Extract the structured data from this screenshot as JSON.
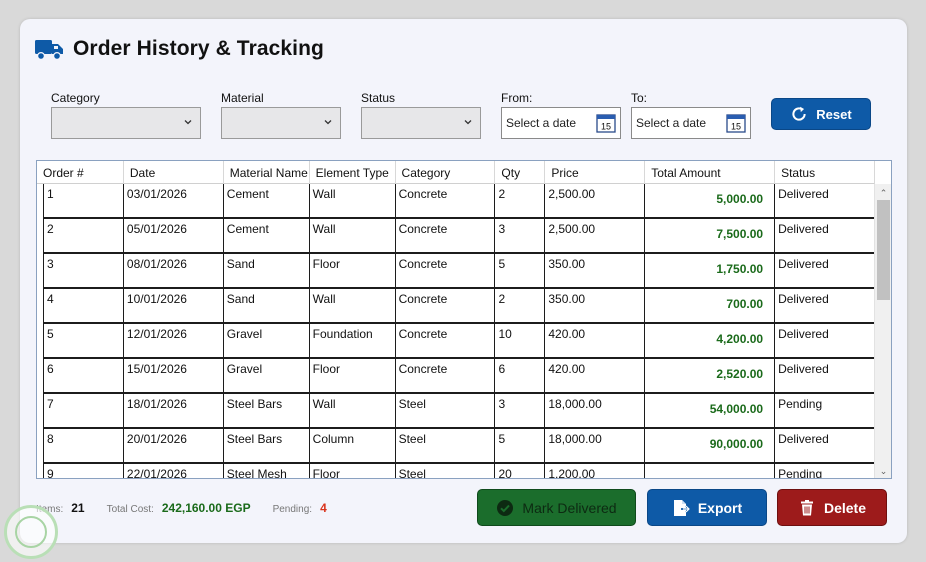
{
  "header": {
    "title": "Order History & Tracking",
    "icon": "truck-icon",
    "accent": "#0e5aa7"
  },
  "filters": {
    "category_label": "Category",
    "material_label": "Material",
    "status_label": "Status",
    "from_label": "From:",
    "to_label": "To:",
    "from_placeholder": "Select a date",
    "to_placeholder": "Select a date",
    "calendar_day": "15",
    "reset_label": "Reset"
  },
  "table": {
    "columns": [
      "Order #",
      "Date",
      "Material Name",
      "Element Type",
      "Category",
      "Qty",
      "Price",
      "Total Amount",
      "Status"
    ],
    "rows": [
      [
        "1",
        "03/01/2026",
        "Cement",
        "Wall",
        "Concrete",
        "2",
        "2,500.00",
        "5,000.00",
        "Delivered"
      ],
      [
        "2",
        "05/01/2026",
        "Cement",
        "Wall",
        "Concrete",
        "3",
        "2,500.00",
        "7,500.00",
        "Delivered"
      ],
      [
        "3",
        "08/01/2026",
        "Sand",
        "Floor",
        "Concrete",
        "5",
        "350.00",
        "1,750.00",
        "Delivered"
      ],
      [
        "4",
        "10/01/2026",
        "Sand",
        "Wall",
        "Concrete",
        "2",
        "350.00",
        "700.00",
        "Delivered"
      ],
      [
        "5",
        "12/01/2026",
        "Gravel",
        "Foundation",
        "Concrete",
        "10",
        "420.00",
        "4,200.00",
        "Delivered"
      ],
      [
        "6",
        "15/01/2026",
        "Gravel",
        "Floor",
        "Concrete",
        "6",
        "420.00",
        "2,520.00",
        "Delivered"
      ],
      [
        "7",
        "18/01/2026",
        "Steel Bars",
        "Wall",
        "Steel",
        "3",
        "18,000.00",
        "54,000.00",
        "Pending"
      ],
      [
        "8",
        "20/01/2026",
        "Steel Bars",
        "Column",
        "Steel",
        "5",
        "18,000.00",
        "90,000.00",
        "Delivered"
      ],
      [
        "9",
        "22/01/2026",
        "Steel Mesh",
        "Floor",
        "Steel",
        "20",
        "1,200.00",
        "",
        "Pending"
      ]
    ],
    "total_color": "#1a6a1a"
  },
  "footer": {
    "items_label": "Items:",
    "items_value": "21",
    "total_cost_label": "Total Cost:",
    "total_cost_value": "242,160.00 EGP",
    "pending_label": "Pending:",
    "pending_value": "4",
    "total_cost_color": "#1a6a1a",
    "pending_color": "#d9331c",
    "mark_delivered_label": "Mark Delivered",
    "export_label": "Export",
    "delete_label": "Delete"
  }
}
